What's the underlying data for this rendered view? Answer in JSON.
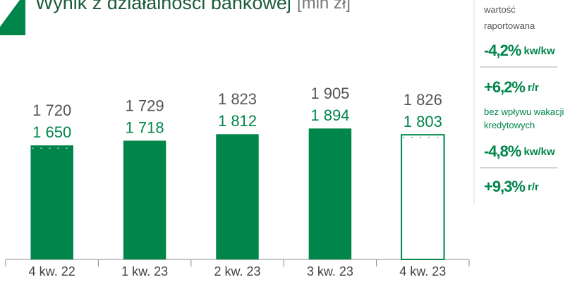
{
  "chart_data": {
    "type": "bar",
    "title": "Wynik z działalności bankowej",
    "unit": "[mln zł]",
    "categories": [
      "4 kw. 22",
      "1 kw. 23",
      "2 kw. 23",
      "3 kw. 23",
      "4 kw. 23"
    ],
    "series": [
      {
        "name": "wartość raportowana",
        "color": "#555555",
        "values": [
          1720,
          1729,
          1823,
          1905,
          1826
        ],
        "value_labels": [
          "1 720",
          "1 729",
          "1 823",
          "1 905",
          "1 826"
        ]
      },
      {
        "name": "bez wpływu wakacji kredytowych",
        "color": "#00854a",
        "values": [
          1650,
          1718,
          1812,
          1894,
          1803
        ],
        "value_labels": [
          "1 650",
          "1 718",
          "1 812",
          "1 894",
          "1 803"
        ]
      }
    ],
    "ylim": [
      0,
      3100
    ],
    "annotations": [
      {
        "items": [
          {
            "value": "-4,2%",
            "unit": "kw/kw"
          },
          {
            "value": "+6,2%",
            "unit": "r/r"
          }
        ]
      },
      {
        "items": [
          {
            "value": "-4,8%",
            "unit": "kw/kw"
          },
          {
            "value": "+9,3%",
            "unit": "r/r"
          }
        ]
      }
    ]
  }
}
